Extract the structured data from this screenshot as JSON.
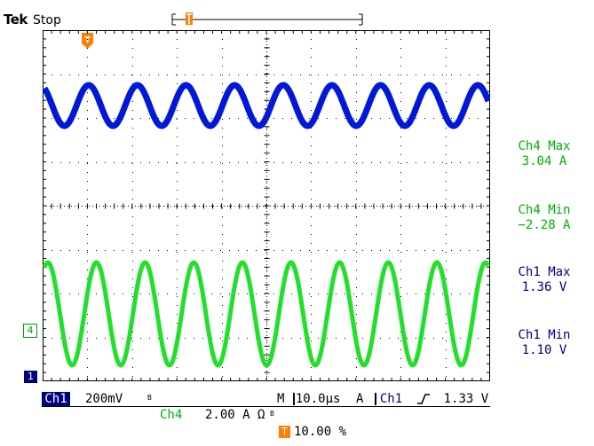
{
  "header": {
    "brand": "Tek",
    "acquisition_status": "Stop"
  },
  "markers": {
    "trigger_symbol": "T",
    "ch4_ground": "4",
    "ch1_ground": "1"
  },
  "measurements": [
    {
      "name": "Ch4 Max",
      "value": "3.04 A"
    },
    {
      "name": "Ch4 Min",
      "value": "−2.28 A"
    },
    {
      "name": "Ch1 Max",
      "value": "1.36 V"
    },
    {
      "name": "Ch1 Min",
      "value": "1.10 V"
    }
  ],
  "status_bar": {
    "ch1_label": "Ch1",
    "ch1_scale": "200mV",
    "ch1_bw": "B",
    "timebase_prefix": "M",
    "timebase": "10.0μs",
    "trigger_mode": "A",
    "trigger_source": "Ch1",
    "trigger_level": "1.33 V",
    "ch4_label": "Ch4",
    "ch4_scale": "2.00 A",
    "ch4_unit_suffix": "Ω",
    "ch4_bw": "B",
    "trigger_position": "10.00 %"
  },
  "colors": {
    "ch4_trace": "#0018d8",
    "ch1_trace": "#22e02a",
    "ch1_badge": "#000080",
    "trigger_marker": "#ff8000"
  },
  "chart_data": {
    "type": "line",
    "series": [
      {
        "name": "Ch4",
        "values": [
          3.04,
          -2.28
        ]
      },
      {
        "name": "Ch1",
        "values": [
          1.36,
          1.1
        ]
      }
    ],
    "cycles_in_record": 9.2,
    "grid": true
  }
}
